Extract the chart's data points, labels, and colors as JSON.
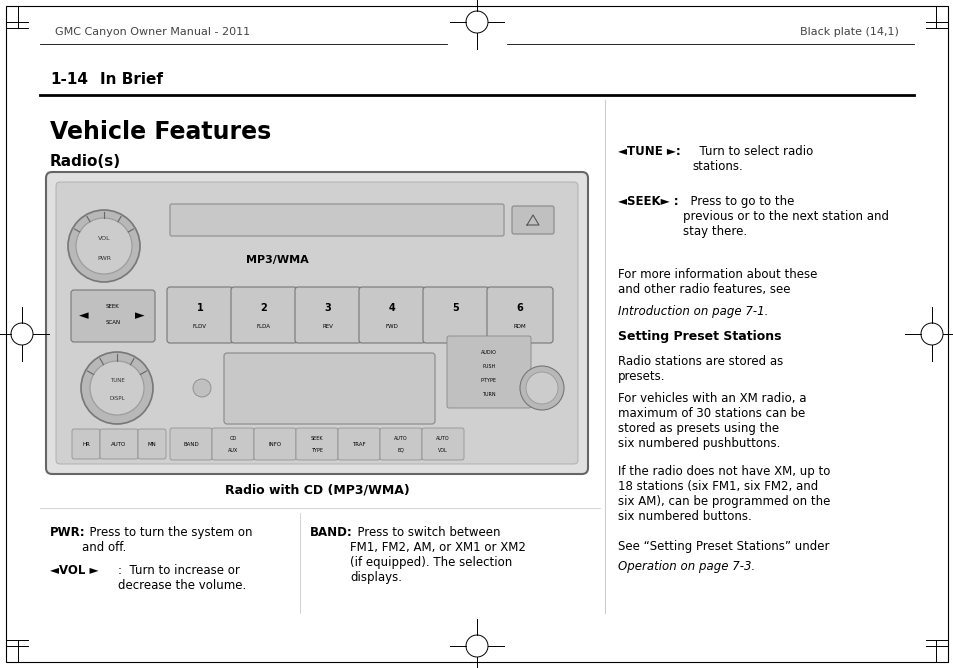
{
  "bg_color": "#ffffff",
  "header_left": "GMC Canyon Owner Manual - 2011",
  "header_right": "Black plate (14,1)",
  "section_num": "1-14",
  "section_title": "In Brief",
  "page_title": "Vehicle Features",
  "subtitle": "Radio(s)",
  "caption": "Radio with CD (MP3/WMA)",
  "tune_bold": "◄TUNE ►:",
  "tune_text": "  Turn to select radio\nstations.",
  "seek_bold": "◄SEEK► :",
  "seek_text": "  Press to go to the\nprevious or to the next station and\nstay there.",
  "info_text": "For more information about these\nand other radio features, see",
  "intro_italic": "Introduction on page 7-1.",
  "preset_heading": "Setting Preset Stations",
  "preset_text1": "Radio stations are stored as\npresets.",
  "preset_text2": "For vehicles with an XM radio, a\nmaximum of 30 stations can be\nstored as presets using the\nsix numbered pushbuttons.",
  "preset_text3": "If the radio does not have XM, up to\n18 stations (six FM1, six FM2, and\nsix AM), can be programmed on the\nsix numbered buttons.",
  "preset_text4": "See “Setting Preset Stations” under",
  "preset_italic": "Operation on page 7-3.",
  "pwr_bold": "PWR:",
  "pwr_text": "  Press to turn the system on\nand off.",
  "vol_bold": "◄VOL ►",
  "vol_text": ":  Turn to increase or\ndecrease the volume.",
  "band_bold": "BAND:",
  "band_text": "  Press to switch between\nFM1, FM2, AM, or XM1 or XM2\n(if equipped). The selection\ndisplays."
}
